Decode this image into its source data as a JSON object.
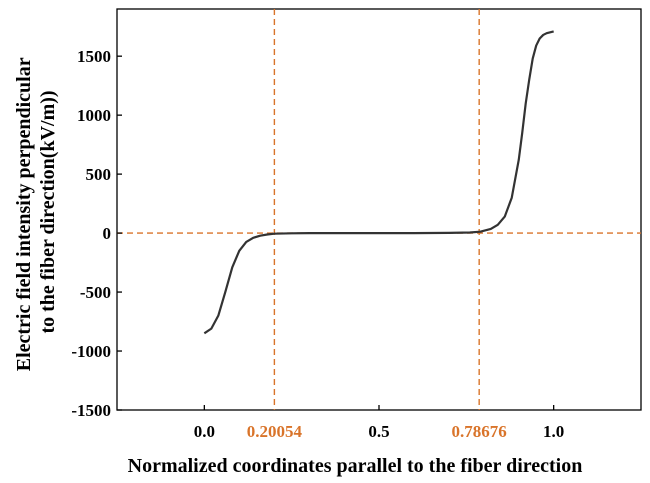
{
  "chart_data": {
    "type": "line",
    "title": "",
    "xlabel": "Normalized coordinates parallel to the fiber direction",
    "ylabel_lines": [
      "Electric field intensity perpendicular",
      "to the fiber direction(kV/m))"
    ],
    "xlim": [
      -0.25,
      1.25
    ],
    "ylim": [
      -1500,
      1900
    ],
    "x_ticks": [
      0.0,
      0.5,
      1.0
    ],
    "x_tick_labels": [
      "0.0",
      "0.5",
      "1.0"
    ],
    "y_ticks": [
      -1500,
      -1000,
      -500,
      0,
      500,
      1000,
      1500
    ],
    "y_tick_labels": [
      "-1500",
      "-1000",
      "-500",
      "0",
      "500",
      "1000",
      "1500"
    ],
    "grid": false,
    "reference_lines": {
      "vertical": [
        {
          "x": 0.20054,
          "label": "0.20054"
        },
        {
          "x": 0.78676,
          "label": "0.78676"
        }
      ],
      "horizontal": [
        {
          "y": 0
        }
      ]
    },
    "series": [
      {
        "x": [
          0.0,
          0.02,
          0.04,
          0.06,
          0.08,
          0.1,
          0.12,
          0.14,
          0.16,
          0.18,
          0.2,
          0.25,
          0.3,
          0.4,
          0.5,
          0.6,
          0.7,
          0.76,
          0.79,
          0.82,
          0.84,
          0.86,
          0.88,
          0.9,
          0.91,
          0.92,
          0.93,
          0.94,
          0.95,
          0.96,
          0.97,
          0.98,
          1.0
        ],
        "y": [
          -850,
          -810,
          -700,
          -500,
          -290,
          -150,
          -75,
          -40,
          -22,
          -12,
          -5,
          -2,
          0,
          0,
          0,
          0,
          2,
          5,
          12,
          35,
          70,
          140,
          300,
          620,
          850,
          1100,
          1300,
          1480,
          1590,
          1650,
          1680,
          1695,
          1710
        ]
      }
    ],
    "colors": {
      "series": "#333333",
      "reference": "#d9742a",
      "axis": "#000000",
      "ref_label": "#d9742a"
    }
  }
}
